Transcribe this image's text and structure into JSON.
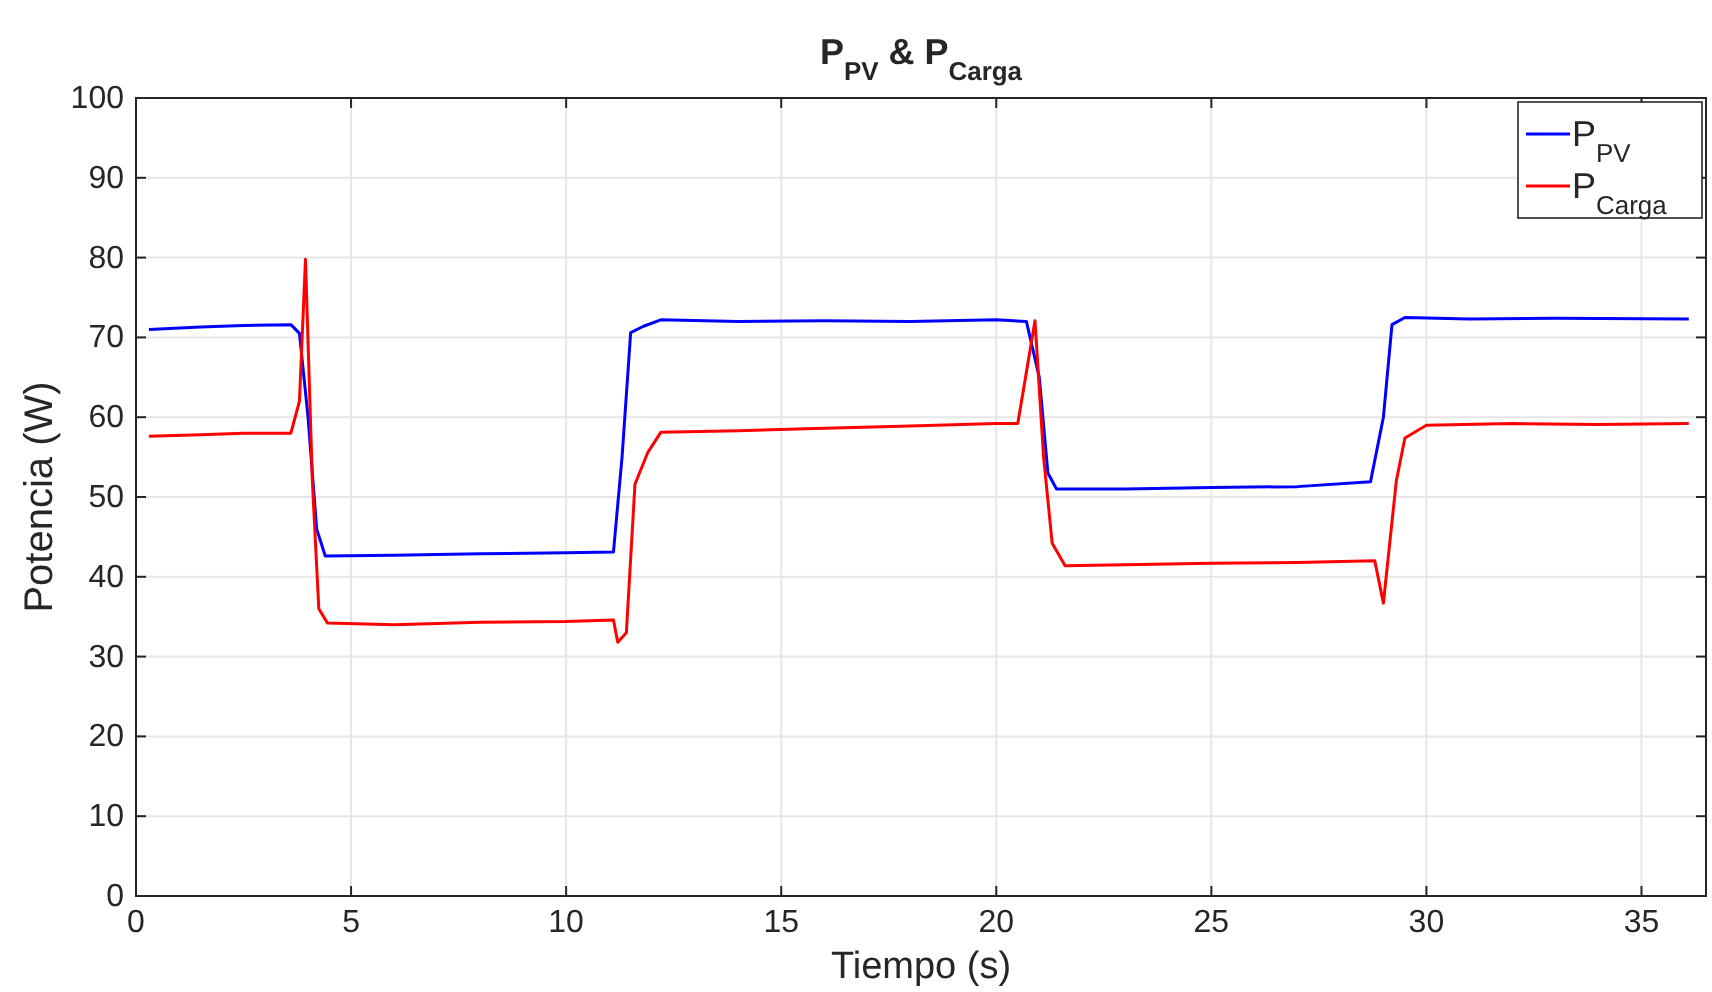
{
  "chart_data": {
    "type": "line",
    "title": "P$_{PV}$ & P$_{Carga}$",
    "xlabel": "Tiempo (s)",
    "ylabel": "Potencia  (W)",
    "xlim": [
      0,
      36.5
    ],
    "xticks": [
      0,
      5,
      10,
      15,
      20,
      25,
      30,
      35
    ],
    "ylim": [
      0,
      100
    ],
    "yticks": [
      0,
      10,
      20,
      30,
      40,
      50,
      60,
      70,
      80,
      90,
      100
    ],
    "grid": true,
    "legend": "top right",
    "line_style": "solid",
    "series": [
      {
        "name": "P$_{PV}$",
        "color": "#0000ff",
        "x": [
          0.3,
          1.5,
          2.5,
          3.6,
          3.8,
          4.0,
          4.2,
          4.4,
          6,
          8,
          10,
          11.1,
          11.3,
          11.5,
          11.8,
          12.2,
          14,
          16,
          18,
          20,
          20.7,
          21.0,
          21.2,
          21.4,
          23,
          25,
          27,
          28.7,
          29.0,
          29.2,
          29.5,
          31,
          33,
          36.1
        ],
        "values": [
          71,
          71.3,
          71.5,
          71.6,
          70.5,
          60,
          46,
          42.6,
          42.7,
          42.9,
          43,
          43.1,
          55,
          70.6,
          71.4,
          72.2,
          72,
          72.1,
          72,
          72.2,
          72,
          65,
          53,
          51,
          51,
          51.2,
          51.3,
          51.9,
          60,
          71.6,
          72.5,
          72.3,
          72.4,
          72.3
        ]
      },
      {
        "name": "P$_{Carga}$",
        "color": "#ff0000",
        "x": [
          0.3,
          1.5,
          2.5,
          3.6,
          3.8,
          3.94,
          4.1,
          4.25,
          4.45,
          6,
          8,
          10,
          11.1,
          11.2,
          11.4,
          11.6,
          11.9,
          12.2,
          14,
          16,
          18,
          20,
          20.5,
          20.6,
          20.9,
          21.1,
          21.3,
          21.6,
          23,
          25,
          27,
          28.8,
          29.0,
          29.3,
          29.5,
          30.0,
          32,
          34,
          36.1
        ],
        "values": [
          57.6,
          57.8,
          58,
          58,
          62,
          79.8,
          52,
          36,
          34.2,
          34,
          34.3,
          34.4,
          34.6,
          31.8,
          33,
          51.6,
          55.6,
          58.1,
          58.3,
          58.6,
          58.9,
          59.2,
          59.2,
          62.4,
          72.1,
          55,
          44.2,
          41.4,
          41.5,
          41.7,
          41.8,
          42,
          36.7,
          52,
          57.4,
          59,
          59.2,
          59.1,
          59.2
        ]
      }
    ]
  }
}
